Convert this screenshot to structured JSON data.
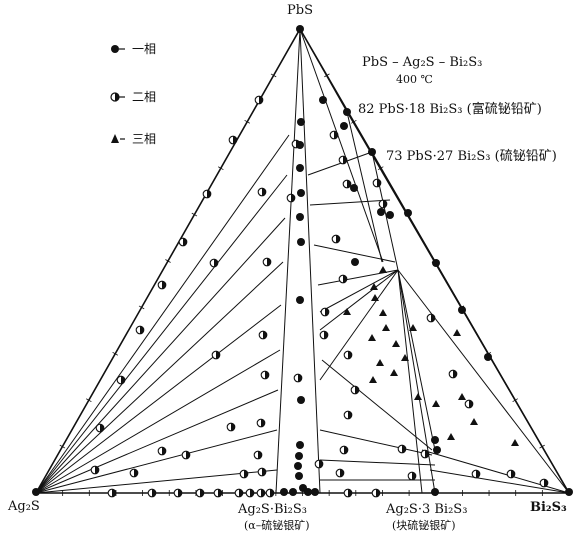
{
  "diagram": {
    "vertex_top": "PbS",
    "vertex_left": "Ag₂S",
    "vertex_right": "Bi₂S₃",
    "system_title": "PbS – Ag₂S – Bi₂S₃",
    "temperature": "400 ℃",
    "compound_82": "82 PbS·18 Bi₂S₃ (富硫铋铅矿)",
    "compound_73": "73 PbS·27 Bi₂S₃ (硫铋铅矿)",
    "compound_agbis2": "Ag₂S·Bi₂S₃",
    "compound_agbis2_mineral": "(α–硫铋银矿)",
    "compound_ag3bi": "Ag₂S·3 Bi₂S₃",
    "compound_ag3bi_mineral": "(块硫铋银矿)"
  },
  "legend": {
    "one_phase": "一相",
    "two_phase": "二相",
    "three_phase": "三相"
  },
  "colors": {
    "ink": "#111111",
    "background": "#ffffff"
  }
}
